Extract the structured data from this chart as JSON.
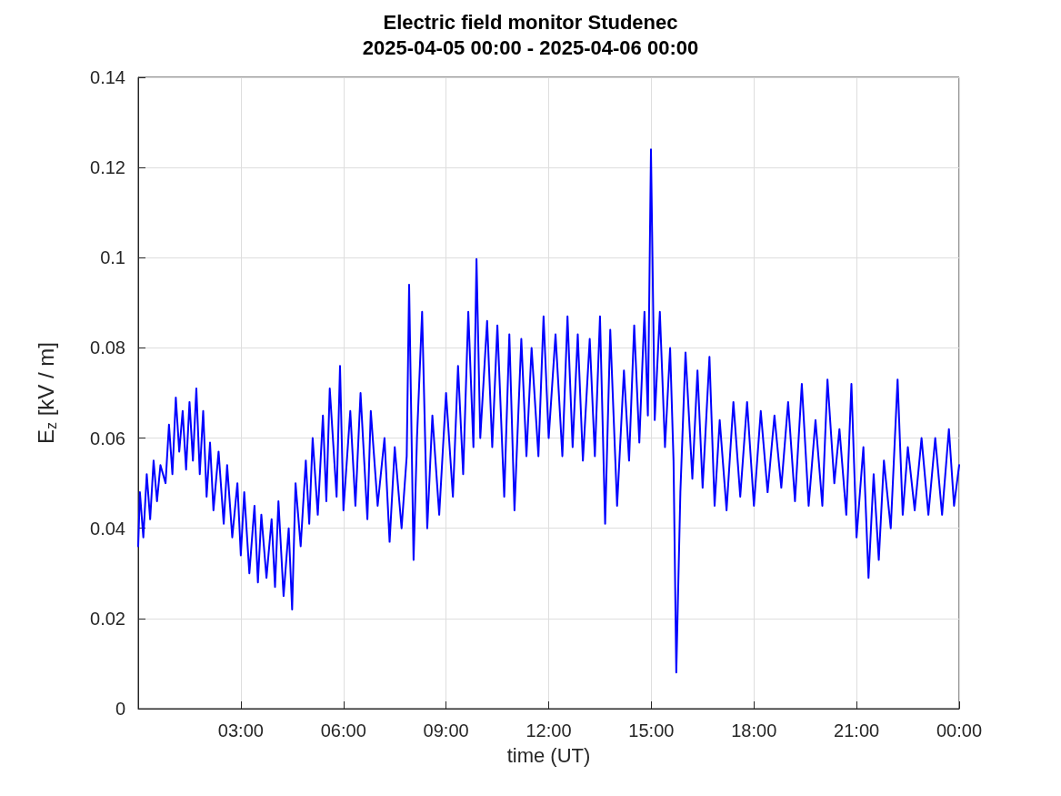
{
  "chart_data": {
    "type": "line",
    "title": "Electric field monitor Studenec",
    "subtitle": "2025-04-05 00:00 - 2025-04-06 00:00",
    "xlabel": "time (UT)",
    "ylabel": "E$_{z}$ [kV / m]",
    "series": [
      {
        "color": "#0000ff",
        "x": [
          0,
          0.05,
          0.15,
          0.25,
          0.35,
          0.45,
          0.55,
          0.65,
          0.8,
          0.9,
          1.0,
          1.1,
          1.2,
          1.3,
          1.4,
          1.5,
          1.6,
          1.7,
          1.8,
          1.9,
          2.0,
          2.1,
          2.2,
          2.35,
          2.5,
          2.6,
          2.75,
          2.9,
          3.0,
          3.1,
          3.25,
          3.4,
          3.5,
          3.6,
          3.75,
          3.9,
          4.0,
          4.1,
          4.25,
          4.4,
          4.5,
          4.6,
          4.75,
          4.9,
          5.0,
          5.1,
          5.25,
          5.4,
          5.5,
          5.6,
          5.8,
          5.9,
          6.0,
          6.2,
          6.35,
          6.5,
          6.7,
          6.8,
          7.0,
          7.2,
          7.35,
          7.5,
          7.7,
          7.85,
          7.92,
          8.05,
          8.15,
          8.3,
          8.45,
          8.6,
          8.8,
          9.0,
          9.2,
          9.35,
          9.5,
          9.65,
          9.8,
          9.89,
          10.0,
          10.2,
          10.35,
          10.5,
          10.7,
          10.85,
          11.0,
          11.2,
          11.35,
          11.5,
          11.7,
          11.85,
          12.0,
          12.2,
          12.4,
          12.55,
          12.7,
          12.85,
          13.0,
          13.2,
          13.35,
          13.5,
          13.65,
          13.8,
          14.0,
          14.2,
          14.35,
          14.5,
          14.65,
          14.8,
          14.9,
          14.99,
          15.1,
          15.25,
          15.4,
          15.55,
          15.65,
          15.73,
          15.85,
          16.0,
          16.2,
          16.35,
          16.5,
          16.7,
          16.85,
          17.0,
          17.2,
          17.4,
          17.6,
          17.8,
          18.0,
          18.2,
          18.4,
          18.6,
          18.8,
          19.0,
          19.2,
          19.4,
          19.6,
          19.8,
          20.0,
          20.15,
          20.35,
          20.5,
          20.7,
          20.85,
          21.0,
          21.2,
          21.35,
          21.5,
          21.65,
          21.8,
          22.0,
          22.2,
          22.35,
          22.5,
          22.7,
          22.9,
          23.1,
          23.3,
          23.5,
          23.7,
          23.85,
          24.0
        ],
        "values": [
          0.036,
          0.048,
          0.038,
          0.052,
          0.042,
          0.055,
          0.046,
          0.054,
          0.05,
          0.063,
          0.052,
          0.069,
          0.057,
          0.066,
          0.053,
          0.068,
          0.055,
          0.071,
          0.052,
          0.066,
          0.047,
          0.059,
          0.044,
          0.057,
          0.041,
          0.054,
          0.038,
          0.05,
          0.034,
          0.048,
          0.03,
          0.045,
          0.028,
          0.043,
          0.029,
          0.042,
          0.027,
          0.046,
          0.025,
          0.04,
          0.022,
          0.05,
          0.036,
          0.055,
          0.041,
          0.06,
          0.043,
          0.065,
          0.046,
          0.071,
          0.047,
          0.076,
          0.044,
          0.066,
          0.045,
          0.07,
          0.042,
          0.066,
          0.045,
          0.06,
          0.037,
          0.058,
          0.04,
          0.056,
          0.094,
          0.033,
          0.06,
          0.088,
          0.04,
          0.065,
          0.043,
          0.07,
          0.047,
          0.076,
          0.052,
          0.088,
          0.058,
          0.0997,
          0.06,
          0.086,
          0.058,
          0.085,
          0.047,
          0.083,
          0.044,
          0.082,
          0.056,
          0.08,
          0.056,
          0.087,
          0.06,
          0.083,
          0.056,
          0.087,
          0.058,
          0.083,
          0.055,
          0.082,
          0.056,
          0.087,
          0.041,
          0.084,
          0.045,
          0.075,
          0.055,
          0.085,
          0.059,
          0.088,
          0.065,
          0.124,
          0.064,
          0.088,
          0.058,
          0.08,
          0.055,
          0.008,
          0.048,
          0.079,
          0.051,
          0.075,
          0.049,
          0.078,
          0.045,
          0.064,
          0.044,
          0.068,
          0.047,
          0.068,
          0.045,
          0.066,
          0.048,
          0.065,
          0.049,
          0.068,
          0.046,
          0.072,
          0.045,
          0.064,
          0.045,
          0.073,
          0.05,
          0.062,
          0.043,
          0.072,
          0.038,
          0.058,
          0.029,
          0.052,
          0.033,
          0.055,
          0.04,
          0.073,
          0.043,
          0.058,
          0.044,
          0.06,
          0.043,
          0.06,
          0.043,
          0.062,
          0.045,
          0.054
        ]
      }
    ],
    "xlim": [
      0,
      24
    ],
    "xticks": [
      {
        "value": 3,
        "label": "03:00"
      },
      {
        "value": 6,
        "label": "06:00"
      },
      {
        "value": 9,
        "label": "09:00"
      },
      {
        "value": 12,
        "label": "12:00"
      },
      {
        "value": 15,
        "label": "15:00"
      },
      {
        "value": 18,
        "label": "18:00"
      },
      {
        "value": 21,
        "label": "21:00"
      },
      {
        "value": 24,
        "label": "00:00"
      }
    ],
    "ylim": [
      0,
      0.14
    ],
    "yticks": [
      0,
      0.02,
      0.04,
      0.06,
      0.08,
      0.1,
      0.12,
      0.14
    ],
    "grid": true,
    "marker": "none",
    "line_style": "solid"
  }
}
